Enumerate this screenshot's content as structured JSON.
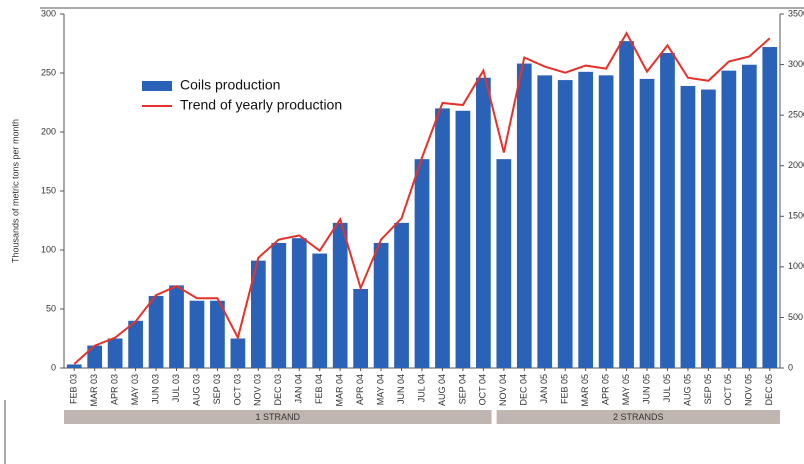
{
  "chart_data": {
    "type": "bar-line",
    "ylabel": "Thousands of metric tons per month",
    "categories": [
      "FEB 03",
      "MAR 03",
      "APR 03",
      "MAY 03",
      "JUN 03",
      "JUL 03",
      "AUG 03",
      "SEP 03",
      "OCT 03",
      "NOV 03",
      "DEC 03",
      "JAN 04",
      "FEB 04",
      "MAR 04",
      "APR 04",
      "MAY 04",
      "JUN 04",
      "JUL 04",
      "AUG 04",
      "SEP 04",
      "OCT 04",
      "NOV 04",
      "DEC 04",
      "JAN 05",
      "FEB 05",
      "MAR 05",
      "APR 05",
      "MAY 05",
      "JUN 05",
      "JUL 05",
      "AUG 05",
      "SEP 05",
      "OCT 05",
      "NOV 05",
      "DEC 05"
    ],
    "series": [
      {
        "name": "Coils production",
        "type": "bar",
        "color": "#2a62b8",
        "values": [
          3,
          19,
          25,
          40,
          61,
          70,
          57,
          57,
          25,
          91,
          106,
          110,
          97,
          123,
          67,
          106,
          123,
          177,
          220,
          218,
          246,
          177,
          258,
          248,
          244,
          251,
          248,
          277,
          245,
          267,
          239,
          236,
          252,
          257,
          272
        ]
      },
      {
        "name": "Trend of yearly production",
        "type": "line",
        "axis": "y2",
        "color": "#e5322a",
        "values": [
          40,
          220,
          300,
          460,
          720,
          810,
          690,
          690,
          300,
          1090,
          1270,
          1310,
          1160,
          1470,
          790,
          1270,
          1480,
          2080,
          2620,
          2600,
          2940,
          2130,
          3070,
          2980,
          2920,
          2990,
          2960,
          3310,
          2930,
          3190,
          2870,
          2840,
          3030,
          3080,
          3260
        ]
      }
    ],
    "ylim": [
      0,
      300
    ],
    "yticks": [
      0,
      50,
      100,
      150,
      200,
      250,
      300
    ],
    "y2lim": [
      0,
      3500
    ],
    "y2ticks": [
      0,
      500,
      1000,
      1500,
      2000,
      2500,
      3000,
      3500
    ],
    "group_labels": [
      "1 STRAND",
      "2 STRANDS"
    ]
  }
}
